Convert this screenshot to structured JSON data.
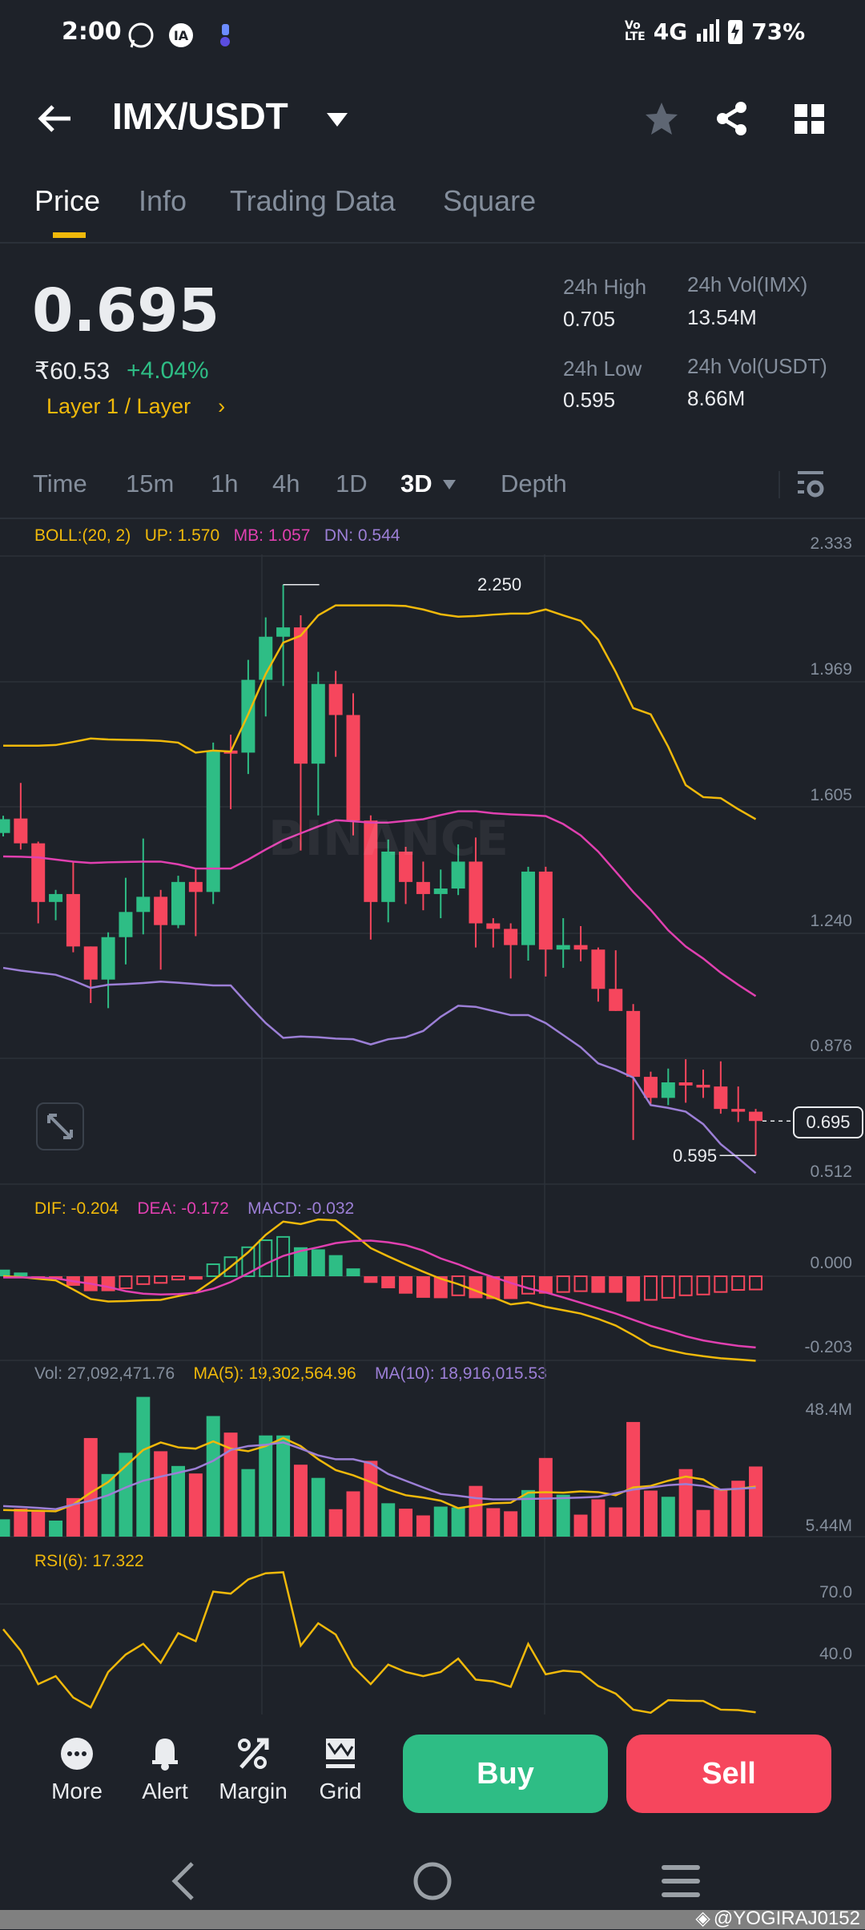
{
  "status_bar": {
    "time": "2:00",
    "network": "4G",
    "battery": "73%",
    "icons": [
      "whatsapp-icon",
      "app-icon",
      "notification-icon",
      "volte-icon",
      "signal-icon",
      "battery-charging-icon"
    ]
  },
  "header": {
    "title": "IMX/USDT",
    "icons": [
      "back-arrow-icon",
      "dropdown-icon",
      "star-icon",
      "share-icon",
      "grid-layout-icon"
    ]
  },
  "tabs": [
    {
      "label": "Price",
      "active": true
    },
    {
      "label": "Info"
    },
    {
      "label": "Trading Data"
    },
    {
      "label": "Square"
    }
  ],
  "ticker": {
    "price": "0.695",
    "fiat": "₹60.53",
    "change": "+4.04%",
    "tag": "Layer 1 / Layer",
    "stats": [
      {
        "label": "24h High",
        "value": "0.705"
      },
      {
        "label": "24h Vol(IMX)",
        "value": "13.54M"
      },
      {
        "label": "24h Low",
        "value": "0.595"
      },
      {
        "label": "24h Vol(USDT)",
        "value": "8.66M"
      }
    ]
  },
  "intervals": {
    "items": [
      "Time",
      "15m",
      "1h",
      "4h",
      "1D",
      "3D",
      "Depth"
    ],
    "active": "3D"
  },
  "colors": {
    "up": "#2ebd85",
    "down": "#f6465d",
    "yellow": "#f0b90b",
    "boll_up": "#f0b90b",
    "boll_mb": "#e040b0",
    "boll_dn": "#9c7fd6",
    "background": "#1e2229"
  },
  "chart_data": [
    {
      "type": "candlestick",
      "indicator": {
        "name": "BOLL:(20, 2)",
        "up": "UP: 1.570",
        "mb": "MB: 1.057",
        "dn": "DN: 0.544"
      },
      "y_ticks": [
        "2.333",
        "1.969",
        "1.605",
        "1.240",
        "0.876",
        "0.512"
      ],
      "ylim": [
        0.512,
        2.333
      ],
      "high_marker": "2.250",
      "low_marker": "0.595",
      "last_price": "0.695",
      "watermark": "BINANCE",
      "ohlc": [
        [
          1.53,
          1.58,
          1.52,
          1.57
        ],
        [
          1.572,
          1.675,
          1.482,
          1.5
        ],
        [
          1.5,
          1.505,
          1.268,
          1.33
        ],
        [
          1.33,
          1.365,
          1.277,
          1.353
        ],
        [
          1.353,
          1.447,
          1.184,
          1.201
        ],
        [
          1.201,
          1.201,
          1.037,
          1.105
        ],
        [
          1.105,
          1.242,
          1.022,
          1.228
        ],
        [
          1.228,
          1.4,
          1.149,
          1.301
        ],
        [
          1.301,
          1.514,
          1.236,
          1.345
        ],
        [
          1.345,
          1.365,
          1.134,
          1.263
        ],
        [
          1.263,
          1.406,
          1.254,
          1.388
        ],
        [
          1.388,
          1.424,
          1.231,
          1.359
        ],
        [
          1.359,
          1.792,
          1.324,
          1.769
        ],
        [
          1.769,
          1.815,
          1.599,
          1.76
        ],
        [
          1.763,
          2.032,
          1.701,
          1.974
        ],
        [
          1.974,
          2.155,
          1.868,
          2.099
        ],
        [
          2.099,
          2.25,
          1.956,
          2.126
        ],
        [
          2.126,
          2.161,
          1.479,
          1.731
        ],
        [
          1.731,
          1.997,
          1.581,
          1.962
        ],
        [
          1.962,
          2.0,
          1.751,
          1.872
        ],
        [
          1.872,
          1.935,
          1.523,
          1.566
        ],
        [
          1.566,
          1.581,
          1.221,
          1.33
        ],
        [
          1.33,
          1.511,
          1.271,
          1.476
        ],
        [
          1.476,
          1.49,
          1.324,
          1.388
        ],
        [
          1.388,
          1.447,
          1.306,
          1.353
        ],
        [
          1.353,
          1.424,
          1.283,
          1.369
        ],
        [
          1.369,
          1.497,
          1.35,
          1.447
        ],
        [
          1.447,
          1.517,
          1.198,
          1.268
        ],
        [
          1.268,
          1.283,
          1.198,
          1.252
        ],
        [
          1.252,
          1.268,
          1.108,
          1.205
        ],
        [
          1.205,
          1.432,
          1.16,
          1.418
        ],
        [
          1.418,
          1.432,
          1.114,
          1.192
        ],
        [
          1.192,
          1.283,
          1.139,
          1.205
        ],
        [
          1.205,
          1.26,
          1.158,
          1.192
        ],
        [
          1.192,
          1.198,
          1.041,
          1.078
        ],
        [
          1.078,
          1.19,
          1.014,
          1.014
        ],
        [
          1.014,
          1.034,
          0.64,
          0.823
        ],
        [
          0.823,
          0.838,
          0.745,
          0.762
        ],
        [
          0.762,
          0.847,
          0.741,
          0.807
        ],
        [
          0.807,
          0.874,
          0.748,
          0.798
        ],
        [
          0.8,
          0.844,
          0.762,
          0.792
        ],
        [
          0.795,
          0.868,
          0.716,
          0.73
        ],
        [
          0.73,
          0.795,
          0.692,
          0.722
        ],
        [
          0.722,
          0.73,
          0.595,
          0.695
        ]
      ],
      "boll_up": [
        1.783,
        1.783,
        1.783,
        1.785,
        1.794,
        1.804,
        1.801,
        1.8,
        1.799,
        1.797,
        1.792,
        1.763,
        1.769,
        1.766,
        1.874,
        1.991,
        2.082,
        2.102,
        2.161,
        2.19,
        2.19,
        2.19,
        2.19,
        2.188,
        2.178,
        2.164,
        2.157,
        2.159,
        2.163,
        2.166,
        2.166,
        2.178,
        2.161,
        2.145,
        2.09,
        1.997,
        1.892,
        1.874,
        1.78,
        1.669,
        1.634,
        1.631,
        1.599,
        1.57
      ],
      "boll_mb": [
        1.462,
        1.461,
        1.459,
        1.453,
        1.447,
        1.443,
        1.445,
        1.446,
        1.447,
        1.447,
        1.439,
        1.427,
        1.427,
        1.427,
        1.453,
        1.482,
        1.509,
        1.529,
        1.549,
        1.567,
        1.564,
        1.56,
        1.56,
        1.565,
        1.57,
        1.582,
        1.593,
        1.593,
        1.587,
        1.584,
        1.582,
        1.579,
        1.556,
        1.523,
        1.476,
        1.418,
        1.359,
        1.307,
        1.248,
        1.201,
        1.166,
        1.125,
        1.09,
        1.057
      ],
      "boll_dn": [
        1.139,
        1.131,
        1.125,
        1.119,
        1.102,
        1.081,
        1.09,
        1.092,
        1.095,
        1.099,
        1.096,
        1.092,
        1.088,
        1.088,
        1.032,
        0.979,
        0.936,
        0.94,
        0.938,
        0.934,
        0.932,
        0.917,
        0.932,
        0.938,
        0.956,
        0.997,
        1.029,
        1.026,
        1.014,
        1.002,
        1.002,
        0.979,
        0.944,
        0.909,
        0.862,
        0.844,
        0.821,
        0.741,
        0.733,
        0.722,
        0.686,
        0.628,
        0.587,
        0.544
      ]
    },
    {
      "type": "bar+line",
      "indicator": {
        "dif": "DIF: -0.204",
        "dea": "DEA: -0.172",
        "macd": "MACD: -0.032"
      },
      "y_ticks": [
        "0.000",
        "-0.203"
      ],
      "macd": [
        0.016,
        0.009,
        -0.006,
        -0.006,
        -0.023,
        -0.036,
        -0.036,
        -0.029,
        -0.019,
        -0.016,
        -0.008,
        -0.008,
        0.029,
        0.046,
        0.07,
        0.087,
        0.095,
        0.07,
        0.065,
        0.051,
        0.019,
        -0.016,
        -0.029,
        -0.042,
        -0.052,
        -0.053,
        -0.046,
        -0.053,
        -0.055,
        -0.055,
        -0.042,
        -0.042,
        -0.038,
        -0.036,
        -0.04,
        -0.04,
        -0.061,
        -0.057,
        -0.052,
        -0.046,
        -0.044,
        -0.038,
        -0.033,
        -0.032
      ],
      "dif": [
        0.0,
        -0.002,
        -0.006,
        -0.01,
        -0.032,
        -0.055,
        -0.061,
        -0.06,
        -0.058,
        -0.057,
        -0.048,
        -0.039,
        -0.01,
        0.023,
        0.058,
        0.1,
        0.132,
        0.126,
        0.137,
        0.135,
        0.103,
        0.068,
        0.048,
        0.029,
        0.011,
        -0.006,
        -0.019,
        -0.035,
        -0.051,
        -0.068,
        -0.063,
        -0.074,
        -0.082,
        -0.09,
        -0.103,
        -0.119,
        -0.142,
        -0.167,
        -0.178,
        -0.187,
        -0.193,
        -0.198,
        -0.201,
        -0.204
      ],
      "dea": [
        -0.003,
        -0.003,
        -0.003,
        -0.005,
        -0.012,
        -0.018,
        -0.026,
        -0.036,
        -0.042,
        -0.044,
        -0.043,
        -0.04,
        -0.03,
        -0.014,
        0.007,
        0.03,
        0.049,
        0.061,
        0.07,
        0.08,
        0.085,
        0.086,
        0.082,
        0.075,
        0.062,
        0.043,
        0.029,
        0.012,
        -0.002,
        -0.016,
        -0.029,
        -0.039,
        -0.051,
        -0.064,
        -0.077,
        -0.09,
        -0.105,
        -0.12,
        -0.132,
        -0.145,
        -0.155,
        -0.162,
        -0.168,
        -0.172
      ]
    },
    {
      "type": "bar+line",
      "indicator": {
        "vol": "Vol: 27,092,471.76",
        "ma5": "MA(5): 19,302,564.96",
        "ma10": "MA(10): 18,916,015.53"
      },
      "y_ticks": [
        "48.4M",
        "5.44M"
      ],
      "unit": "M",
      "volume": [
        6.7,
        10.8,
        10.3,
        6.2,
        14.9,
        38.1,
        24.2,
        32.4,
        54.0,
        33.0,
        27.3,
        24.4,
        46.6,
        40.2,
        26.1,
        39.1,
        39.1,
        27.8,
        22.7,
        10.6,
        17.5,
        29.3,
        12.9,
        10.8,
        8.2,
        11.6,
        11.3,
        19.6,
        11.0,
        9.8,
        18.0,
        30.4,
        16.2,
        8.5,
        14.4,
        11.3,
        44.3,
        17.8,
        15.4,
        26.1,
        10.3,
        18.2,
        21.6,
        27.1
      ],
      "ma5": [
        10.3,
        10.1,
        10.0,
        9.8,
        12.4,
        17.0,
        21.1,
        27.3,
        33.5,
        36.4,
        34.5,
        34.0,
        36.8,
        34.0,
        33.0,
        35.0,
        38.1,
        35.0,
        29.9,
        25.7,
        23.7,
        21.1,
        18.2,
        16.0,
        15.1,
        13.9,
        11.0,
        12.0,
        12.9,
        13.1,
        17.0,
        17.2,
        17.0,
        17.5,
        17.2,
        16.0,
        19.0,
        19.6,
        21.6,
        23.2,
        22.1,
        18.0,
        18.5,
        19.3
      ],
      "ma10": [
        11.8,
        11.5,
        11.1,
        10.6,
        12.4,
        13.9,
        16.0,
        19.0,
        21.6,
        23.2,
        24.7,
        26.3,
        29.3,
        33.5,
        35.0,
        35.5,
        36.4,
        34.0,
        31.4,
        29.9,
        29.9,
        28.3,
        24.2,
        21.6,
        19.0,
        16.5,
        15.8,
        14.9,
        14.4,
        14.4,
        14.6,
        14.7,
        14.9,
        15.1,
        15.4,
        16.8,
        18.2,
        19.0,
        19.9,
        20.3,
        19.6,
        18.2,
        18.5,
        18.9
      ]
    },
    {
      "type": "line",
      "indicator": {
        "rsi": "RSI(6): 17.322"
      },
      "y_ticks": [
        "70.0",
        "40.0"
      ],
      "rsi": [
        57.7,
        47.3,
        31.0,
        34.9,
        24.5,
        19.7,
        36.9,
        45.4,
        50.6,
        41.4,
        55.8,
        51.9,
        76.0,
        75.0,
        81.9,
        84.9,
        85.4,
        49.7,
        60.6,
        55.1,
        39.5,
        31.0,
        40.5,
        36.9,
        34.9,
        36.9,
        43.4,
        33.2,
        32.3,
        29.7,
        50.6,
        35.8,
        37.5,
        36.9,
        30.1,
        26.4,
        18.6,
        17.1,
        23.2,
        22.9,
        22.8,
        18.6,
        18.4,
        17.3
      ]
    }
  ],
  "bottom_bar": {
    "items": [
      {
        "label": "More",
        "icon": "more-icon"
      },
      {
        "label": "Alert",
        "icon": "bell-icon"
      },
      {
        "label": "Margin",
        "icon": "margin-icon"
      },
      {
        "label": "Grid",
        "icon": "grid-trading-icon"
      }
    ],
    "buy": "Buy",
    "sell": "Sell"
  },
  "watermark": "@YOGIRAJ0152"
}
